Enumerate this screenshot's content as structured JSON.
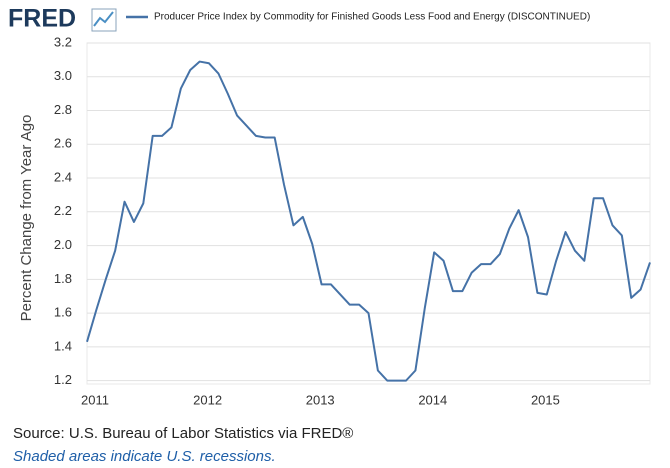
{
  "header": {
    "logo": "FRED"
  },
  "chart_data": {
    "type": "line",
    "y_label": "Percent Change from Year Ago",
    "categories": [
      "2011",
      null,
      null,
      null,
      null,
      null,
      null,
      null,
      null,
      null,
      null,
      null,
      "2012",
      null,
      null,
      null,
      null,
      null,
      null,
      null,
      null,
      null,
      null,
      null,
      "2013",
      null,
      null,
      null,
      null,
      null,
      null,
      null,
      null,
      null,
      null,
      null,
      "2014",
      null,
      null,
      null,
      null,
      null,
      null,
      null,
      null,
      null,
      null,
      null,
      "2015",
      null,
      null,
      null,
      null,
      null,
      null,
      null,
      null,
      null,
      null,
      null,
      null
    ],
    "series": [
      {
        "name": "Producer Price Index by Commodity for Finished Goods Less Food and Energy (DISCONTINUED)",
        "color": "#4572a7",
        "values": [
          1.43,
          1.62,
          1.8,
          1.97,
          2.26,
          2.14,
          2.25,
          2.65,
          2.65,
          2.7,
          2.93,
          3.04,
          3.09,
          3.08,
          3.02,
          2.9,
          2.77,
          2.71,
          2.65,
          2.64,
          2.64,
          2.36,
          2.12,
          2.17,
          2.01,
          1.77,
          1.77,
          1.71,
          1.65,
          1.65,
          1.6,
          1.26,
          1.2,
          1.2,
          1.2,
          1.26,
          1.63,
          1.96,
          1.91,
          1.73,
          1.73,
          1.84,
          1.89,
          1.89,
          1.95,
          2.1,
          2.21,
          2.05,
          1.72,
          1.71,
          1.91,
          2.08,
          1.97,
          1.91,
          2.28,
          2.28,
          2.12,
          2.06,
          1.69,
          1.74,
          1.9
        ]
      }
    ],
    "ylim": [
      1.18,
      3.2
    ],
    "yticks": [
      1.2,
      1.4,
      1.6,
      1.8,
      {
        "value": 2.0,
        "label": "2.0"
      },
      2.2,
      2.4,
      2.6,
      2.8,
      {
        "value": 3.0,
        "label": "3.0"
      },
      3.2
    ],
    "grid": true
  },
  "footer": {
    "source": "Source: U.S. Bureau of Labor Statistics via FRED®",
    "note": "Shaded areas indicate U.S. recessions."
  }
}
